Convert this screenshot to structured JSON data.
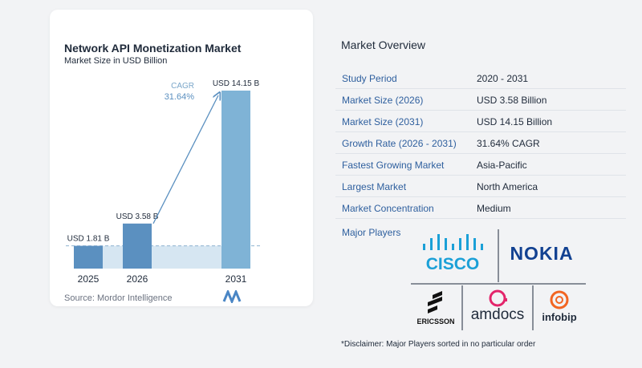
{
  "chart": {
    "title": "Network API Monetization Market",
    "subtitle": "Market Size in USD Billion",
    "source": "Source: Mordor Intelligence",
    "cagr_label": "CAGR",
    "cagr_value": "31.64%"
  },
  "chart_data": {
    "type": "bar",
    "categories": [
      "2025",
      "2026",
      "2031"
    ],
    "values": [
      1.81,
      3.58,
      14.15
    ],
    "data_labels": [
      "USD 1.81 B",
      "USD 3.58 B",
      "USD 14.15 B"
    ],
    "title": "Network API Monetization Market",
    "subtitle": "Market Size in USD Billion",
    "ylim": [
      0,
      14.15
    ],
    "grid": false,
    "colors": [
      "#5b90c0",
      "#5b90c0",
      "#7fb3d6"
    ],
    "annotation": "CAGR 31.64%"
  },
  "overview": {
    "title": "Market Overview",
    "rows": [
      {
        "label": "Study Period",
        "value": "2020 - 2031"
      },
      {
        "label": "Market Size (2026)",
        "value": "USD 3.58 Billion"
      },
      {
        "label": "Market Size (2031)",
        "value": "USD 14.15 Billion"
      },
      {
        "label": "Growth Rate (2026 - 2031)",
        "value": "31.64% CAGR"
      },
      {
        "label": "Fastest Growing Market",
        "value": "Asia-Pacific"
      },
      {
        "label": "Largest Market",
        "value": "North America"
      },
      {
        "label": "Market Concentration",
        "value": "Medium"
      }
    ]
  },
  "players": {
    "label": "Major Players",
    "logos": [
      "CISCO",
      "NOKIA",
      "ERICSSON",
      "amdocs",
      "infobip"
    ]
  },
  "disclaimer": "*Disclaimer: Major Players sorted in no particular order",
  "colors": {
    "label_blue": "#2e5f9e",
    "bar_dark": "#5b90c0",
    "bar_light": "#7fb3d6",
    "area": "#d6e6f2",
    "cisco": "#1ba0d7",
    "nokia": "#124191",
    "amdocs": "#e3256b",
    "infobip": "#f26522"
  }
}
